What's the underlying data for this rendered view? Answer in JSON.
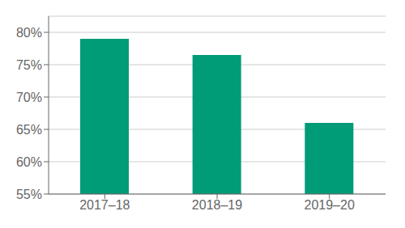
{
  "chart_data": {
    "type": "bar",
    "categories": [
      "2017–18",
      "2018–19",
      "2019–20"
    ],
    "values": [
      0.79,
      0.765,
      0.66
    ],
    "color": "#009B77",
    "ylim": [
      0.55,
      0.825
    ],
    "yticks": [
      {
        "value": 0.55,
        "label": "55%"
      },
      {
        "value": 0.6,
        "label": "60%"
      },
      {
        "value": 0.65,
        "label": "65%"
      },
      {
        "value": 0.7,
        "label": "70%"
      },
      {
        "value": 0.75,
        "label": "75%"
      },
      {
        "value": 0.8,
        "label": "80%"
      }
    ],
    "grid": true
  }
}
